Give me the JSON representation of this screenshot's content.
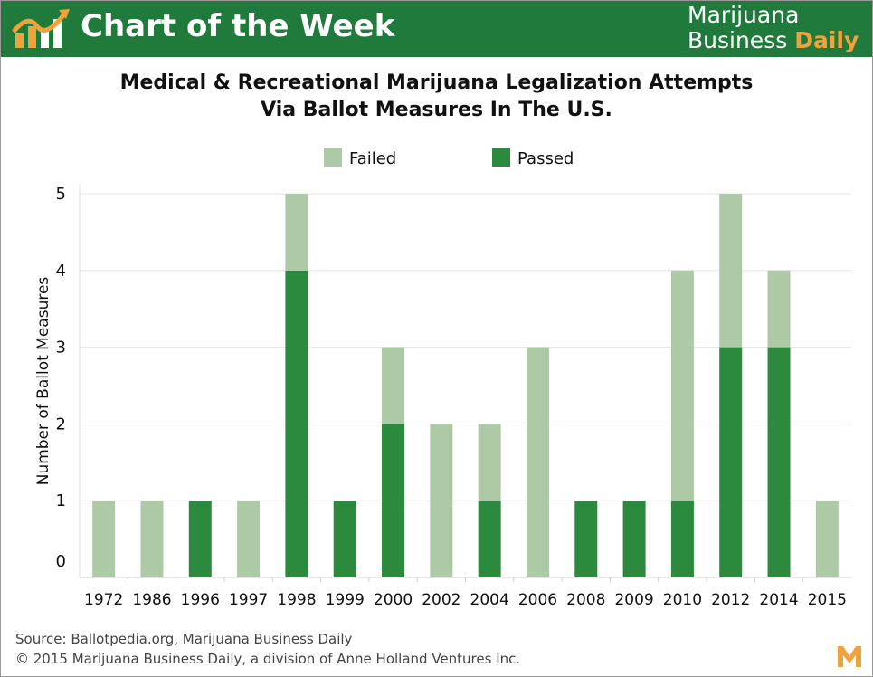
{
  "header": {
    "title": "Chart of the Week",
    "brand_line1": "Marijuana",
    "brand_line2_a": "Business ",
    "brand_line2_b": "Daily"
  },
  "colors": {
    "header_bg": "#1f7a3c",
    "failed": "#adc9a6",
    "passed": "#2b8a3e",
    "accent": "#f2a23a"
  },
  "icons": {
    "logo": "bar-chart-trend-icon",
    "corner": "m-logo-icon"
  },
  "chart_data": {
    "type": "bar",
    "stacked": true,
    "title_line1": "Medical & Recreational Marijuana Legalization Attempts",
    "title_line2": "Via Ballot Measures In The U.S.",
    "ylabel": "Number of Ballot Measures",
    "xlabel": "",
    "ylim": [
      0,
      5
    ],
    "yticks": [
      "0",
      "1",
      "2",
      "3",
      "4",
      "5"
    ],
    "grid": true,
    "legend_position": "top-center",
    "categories": [
      "1972",
      "1986",
      "1996",
      "1997",
      "1998",
      "1999",
      "2000",
      "2002",
      "2004",
      "2006",
      "2008",
      "2009",
      "2010",
      "2012",
      "2014",
      "2015"
    ],
    "series": [
      {
        "name": "Passed",
        "values": [
          0,
          0,
          1,
          0,
          4,
          1,
          2,
          0,
          1,
          0,
          1,
          1,
          1,
          3,
          3,
          0
        ]
      },
      {
        "name": "Failed",
        "values": [
          1,
          1,
          0,
          1,
          1,
          0,
          1,
          2,
          1,
          3,
          0,
          0,
          3,
          2,
          1,
          1
        ]
      }
    ],
    "legend": [
      "Failed",
      "Passed"
    ]
  },
  "footer": {
    "source": "Source: Ballotpedia.org, Marijuana Business Daily",
    "copyright": "© 2015 Marijuana Business Daily, a division of Anne Holland Ventures Inc."
  }
}
